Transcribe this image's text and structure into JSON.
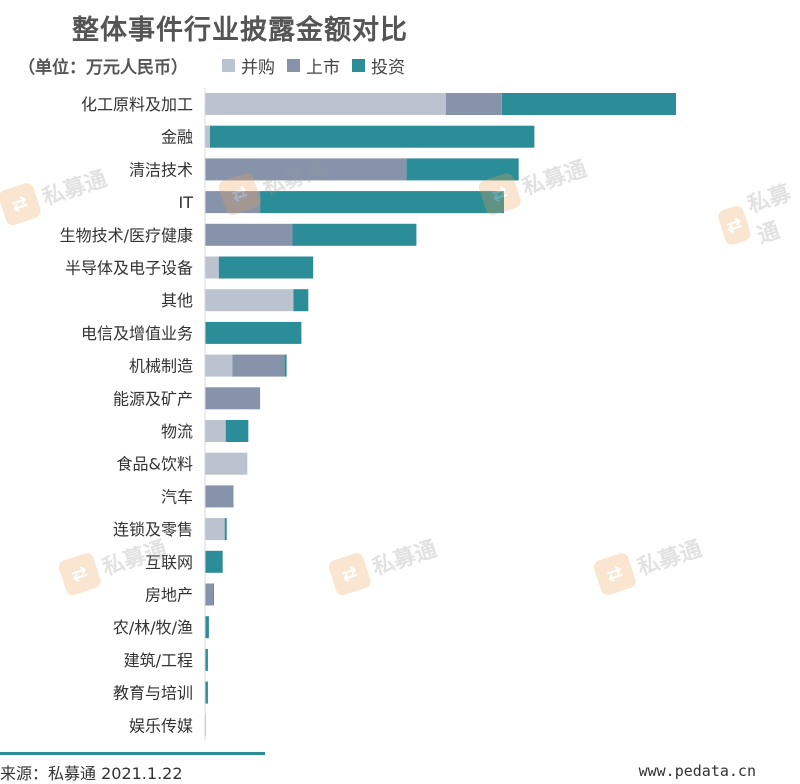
{
  "title": "整体事件行业披露金额对比",
  "unit_label": "（单位：万元人民币）",
  "legend": [
    {
      "name": "并购",
      "color": "#bcc3d0"
    },
    {
      "name": "上市",
      "color": "#8693ab"
    },
    {
      "name": "投资",
      "color": "#2a8d97"
    }
  ],
  "watermark_text": "私募通",
  "watermark_icon": "arrows-logo-icon",
  "footer": {
    "source": "来源：私募通 2021.1.22",
    "site": "www.pedata.cn",
    "accent_color": "#2a8d97"
  },
  "chart_data": {
    "type": "bar",
    "orientation": "horizontal",
    "stacked": true,
    "title": "整体事件行业披露金额对比",
    "categories": [
      "化工原料及加工",
      "金融",
      "清洁技术",
      "IT",
      "生物技术/医疗健康",
      "半导体及电子设备",
      "其他",
      "电信及增值业务",
      "机械制造",
      "能源及矿产",
      "物流",
      "食品&饮料",
      "汽车",
      "连锁及零售",
      "互联网",
      "房地产",
      "农/林/牧/渔",
      "建筑/工程",
      "教育与培训",
      "娱乐传媒"
    ],
    "series": [
      {
        "name": "并购",
        "values": [
          245,
          5,
          0,
          0,
          0,
          14,
          90,
          0,
          28,
          0,
          21,
          43,
          0,
          20,
          0,
          0,
          0,
          0,
          0,
          1
        ]
      },
      {
        "name": "上市",
        "values": [
          57,
          0,
          205,
          56,
          89,
          0,
          0,
          0,
          53,
          56,
          0,
          0,
          29,
          0,
          0,
          8,
          0,
          0,
          0,
          0
        ]
      },
      {
        "name": "投资",
        "values": [
          177,
          330,
          114,
          248,
          126,
          96,
          15,
          98,
          2,
          0,
          23,
          0,
          0,
          2,
          18,
          1,
          4,
          3,
          3,
          0
        ]
      }
    ],
    "xlim": [
      0,
      600
    ],
    "xaxis_visible": false,
    "grid": false,
    "legend_position": "top"
  }
}
